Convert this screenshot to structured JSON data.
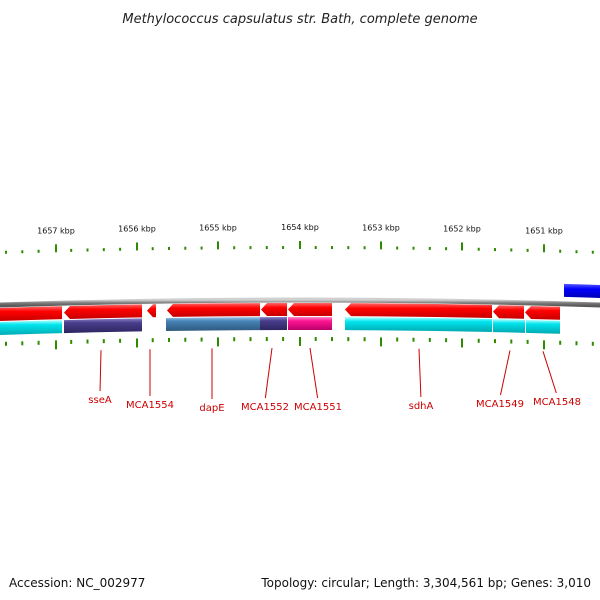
{
  "title": "Methylococcus capsulatus str. Bath, complete genome",
  "footer": {
    "accession": "Accession: NC_002977",
    "summary": "Topology: circular; Length: 3,304,561 bp; Genes: 3,010"
  },
  "scale_labels": [
    "1657 kbp",
    "1656 kbp",
    "1655 kbp",
    "1654 kbp",
    "1653 kbp",
    "1652 kbp",
    "1651 kbp"
  ],
  "gene_labels": [
    "sseA",
    "MCA1554",
    "dapE",
    "MCA1552",
    "MCA1551",
    "sdhA",
    "MCA1549",
    "MCA1548"
  ],
  "colors": {
    "backbone": "#7f7f7f",
    "forward_gene": "#0000ff",
    "reverse_gene": "#ff0000",
    "cds_cyan": "#00e5ee",
    "cds_purple": "#483d8b",
    "cds_steelblue": "#4682b4",
    "cds_magenta": "#ff1493",
    "tick": "#2e8b00",
    "label": "#cc0000"
  }
}
